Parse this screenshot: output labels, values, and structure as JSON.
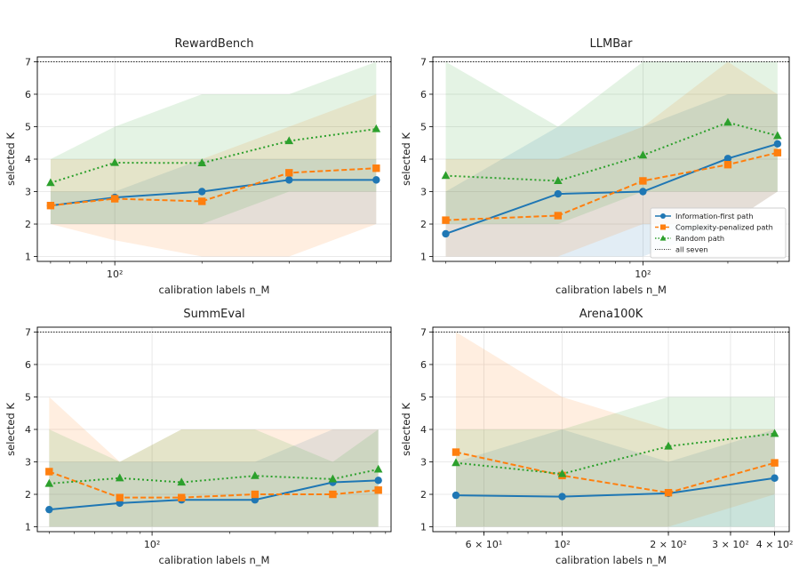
{
  "figure": {
    "suptitle": "",
    "legend_entries": [
      {
        "label": "Information-first path",
        "color": "#1f77b4",
        "marker": "circle",
        "dash": "solid"
      },
      {
        "label": "Complexity-penalized path",
        "color": "#ff7f0e",
        "marker": "square",
        "dash": "dashed"
      },
      {
        "label": "Random path",
        "color": "#2ca02c",
        "marker": "triangle",
        "dash": "dotted"
      },
      {
        "label": "all seven",
        "color": "#222222",
        "marker": "none",
        "dash": "dotted"
      }
    ],
    "colors": {
      "info": "#1f77b4",
      "complexity": "#ff7f0e",
      "random": "#2ca02c",
      "ref": "#222222"
    }
  },
  "chart_data": [
    {
      "type": "line",
      "title": "RewardBench",
      "xlabel": "calibration labels n_M",
      "ylabel": "selected K",
      "xscale": "log",
      "xlim": [
        54,
        900
      ],
      "ylim": [
        0.85,
        7.15
      ],
      "yticks": [
        "1",
        "2",
        "3",
        "4",
        "5",
        "6",
        "7"
      ],
      "xticks": [
        {
          "value": 100,
          "label": "10²"
        }
      ],
      "reference_line": {
        "y": 7,
        "label": "all seven"
      },
      "legend": "none",
      "grid": true,
      "x": [
        60,
        100,
        200,
        400,
        800
      ],
      "series": [
        {
          "name": "Information-first path",
          "values": [
            2.57,
            2.82,
            3.0,
            3.36,
            3.36
          ],
          "band_low": [
            2.0,
            2.0,
            2.0,
            2.0,
            2.0
          ],
          "band_high": [
            3.0,
            3.0,
            4.0,
            4.0,
            4.0
          ]
        },
        {
          "name": "Complexity-penalized path",
          "values": [
            2.57,
            2.78,
            2.7,
            3.58,
            3.72
          ],
          "band_low": [
            2.0,
            1.5,
            1.0,
            1.0,
            2.0
          ],
          "band_high": [
            4.0,
            4.0,
            4.0,
            5.0,
            6.0
          ]
        },
        {
          "name": "Random path",
          "values": [
            3.27,
            3.89,
            3.88,
            4.56,
            4.93
          ],
          "band_low": [
            2.0,
            2.0,
            2.0,
            3.0,
            3.0
          ],
          "band_high": [
            4.0,
            5.0,
            6.0,
            6.0,
            7.0
          ]
        }
      ]
    },
    {
      "type": "line",
      "title": "LLMBar",
      "xlabel": "calibration labels n_M",
      "ylabel": "selected K",
      "xscale": "log",
      "xlim": [
        18,
        330
      ],
      "ylim": [
        0.85,
        7.15
      ],
      "yticks": [
        "1",
        "2",
        "3",
        "4",
        "5",
        "6",
        "7"
      ],
      "xticks": [
        {
          "value": 100,
          "label": "10²"
        }
      ],
      "reference_line": {
        "y": 7,
        "label": "all seven"
      },
      "legend": "lower right",
      "grid": true,
      "x": [
        20,
        50,
        100,
        200,
        300
      ],
      "series": [
        {
          "name": "Information-first path",
          "values": [
            1.7,
            2.93,
            3.0,
            4.02,
            4.47
          ],
          "band_low": [
            1.0,
            1.0,
            1.0,
            2.0,
            3.0
          ],
          "band_high": [
            3.0,
            5.0,
            5.0,
            6.0,
            6.0
          ]
        },
        {
          "name": "Complexity-penalized path",
          "values": [
            2.12,
            2.26,
            3.33,
            3.83,
            4.2
          ],
          "band_low": [
            1.0,
            1.0,
            2.0,
            2.0,
            3.0
          ],
          "band_high": [
            4.0,
            4.0,
            5.0,
            7.0,
            6.0
          ]
        },
        {
          "name": "Random path",
          "values": [
            3.49,
            3.33,
            4.12,
            5.13,
            4.72
          ],
          "band_low": [
            2.0,
            2.0,
            3.0,
            3.0,
            3.0
          ],
          "band_high": [
            7.0,
            5.0,
            7.0,
            7.0,
            7.0
          ]
        }
      ]
    },
    {
      "type": "line",
      "title": "SummEval",
      "xlabel": "calibration labels n_M",
      "ylabel": "selected K",
      "xscale": "log",
      "xlim": [
        36,
        840
      ],
      "ylim": [
        0.85,
        7.15
      ],
      "yticks": [
        "1",
        "2",
        "3",
        "4",
        "5",
        "6",
        "7"
      ],
      "xticks": [
        {
          "value": 100,
          "label": "10²"
        }
      ],
      "reference_line": {
        "y": 7,
        "label": "all seven"
      },
      "legend": "none",
      "grid": true,
      "x": [
        40,
        75,
        130,
        250,
        500,
        750
      ],
      "series": [
        {
          "name": "Information-first path",
          "values": [
            1.53,
            1.73,
            1.83,
            1.83,
            2.37,
            2.43
          ],
          "band_low": [
            1.0,
            1.0,
            1.0,
            1.0,
            1.0,
            1.0
          ],
          "band_high": [
            3.0,
            3.0,
            3.0,
            3.0,
            4.0,
            4.0
          ]
        },
        {
          "name": "Complexity-penalized path",
          "values": [
            2.7,
            1.9,
            1.9,
            2.0,
            2.0,
            2.13
          ],
          "band_low": [
            1.0,
            1.0,
            1.0,
            1.0,
            1.0,
            1.0
          ],
          "band_high": [
            5.0,
            3.0,
            4.0,
            4.0,
            4.0,
            4.0
          ]
        },
        {
          "name": "Random path",
          "values": [
            2.33,
            2.5,
            2.37,
            2.57,
            2.47,
            2.77
          ],
          "band_low": [
            1.0,
            1.0,
            1.0,
            1.0,
            1.0,
            1.0
          ],
          "band_high": [
            4.0,
            3.0,
            4.0,
            4.0,
            3.0,
            4.0
          ]
        }
      ]
    },
    {
      "type": "line",
      "title": "Arena100K",
      "xlabel": "calibration labels n_M",
      "ylabel": "selected K",
      "xscale": "log",
      "xlim": [
        43,
        440
      ],
      "ylim": [
        0.85,
        7.15
      ],
      "yticks": [
        "1",
        "2",
        "3",
        "4",
        "5",
        "6",
        "7"
      ],
      "xticks": [
        {
          "value": 60,
          "label": "6 × 10¹"
        },
        {
          "value": 100,
          "label": "10²"
        },
        {
          "value": 200,
          "label": "2 × 10²"
        },
        {
          "value": 300,
          "label": "3 × 10²"
        },
        {
          "value": 400,
          "label": "4 × 10²"
        }
      ],
      "reference_line": {
        "y": 7,
        "label": "all seven"
      },
      "legend": "none",
      "grid": true,
      "x": [
        50,
        100,
        200,
        400
      ],
      "series": [
        {
          "name": "Information-first path",
          "values": [
            1.97,
            1.93,
            2.03,
            2.5
          ],
          "band_low": [
            1.0,
            1.0,
            1.0,
            1.0
          ],
          "band_high": [
            3.0,
            4.0,
            3.0,
            4.0
          ]
        },
        {
          "name": "Complexity-penalized path",
          "values": [
            3.3,
            2.58,
            2.05,
            2.97
          ],
          "band_low": [
            1.0,
            1.0,
            1.0,
            2.0
          ],
          "band_high": [
            7.0,
            5.0,
            4.0,
            4.0
          ]
        },
        {
          "name": "Random path",
          "values": [
            2.97,
            2.63,
            3.48,
            3.87
          ],
          "band_low": [
            1.0,
            1.0,
            1.0,
            1.0
          ],
          "band_high": [
            4.0,
            4.0,
            5.0,
            5.0
          ]
        }
      ]
    }
  ]
}
